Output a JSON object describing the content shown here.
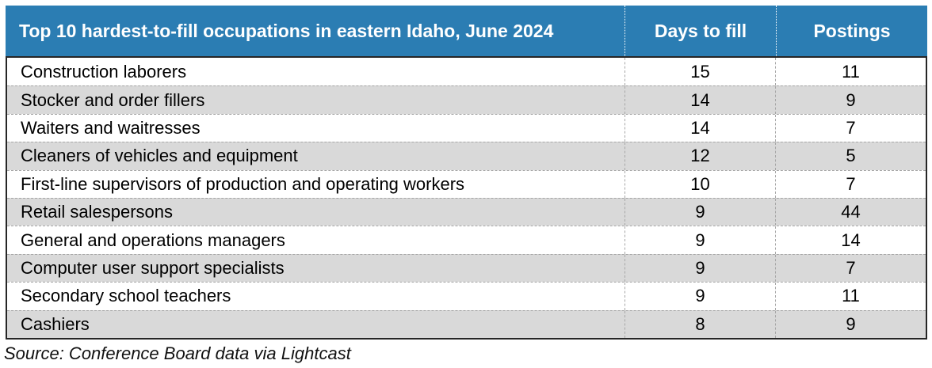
{
  "chart_data": {
    "type": "table",
    "title": "Top 10 hardest-to-fill occupations in eastern Idaho, June 2024",
    "columns": [
      "Days to fill",
      "Postings"
    ],
    "rows": [
      {
        "occupation": "Construction laborers",
        "days_to_fill": 15,
        "postings": 11
      },
      {
        "occupation": "Stocker and order fillers",
        "days_to_fill": 14,
        "postings": 9
      },
      {
        "occupation": "Waiters and waitresses",
        "days_to_fill": 14,
        "postings": 7
      },
      {
        "occupation": "Cleaners of vehicles and equipment",
        "days_to_fill": 12,
        "postings": 5
      },
      {
        "occupation": "First-line supervisors of production and operating workers",
        "days_to_fill": 10,
        "postings": 7
      },
      {
        "occupation": "Retail salespersons",
        "days_to_fill": 9,
        "postings": 44
      },
      {
        "occupation": "General and operations managers",
        "days_to_fill": 9,
        "postings": 14
      },
      {
        "occupation": "Computer user support specialists",
        "days_to_fill": 9,
        "postings": 7
      },
      {
        "occupation": "Secondary school teachers",
        "days_to_fill": 9,
        "postings": 11
      },
      {
        "occupation": "Cashiers",
        "days_to_fill": 8,
        "postings": 9
      }
    ],
    "source": "Source: Conference Board data via Lightcast",
    "layout": {
      "legend": "none",
      "grid": "dashed-row-and-column-separators",
      "row_striping": "alternating starting white"
    }
  },
  "colors": {
    "header_bg": "#2b7db3",
    "alt_row_bg": "#d9d9d9",
    "border_color": "#262626",
    "dash_color": "#a6a6a6",
    "text_color": "#000000"
  }
}
